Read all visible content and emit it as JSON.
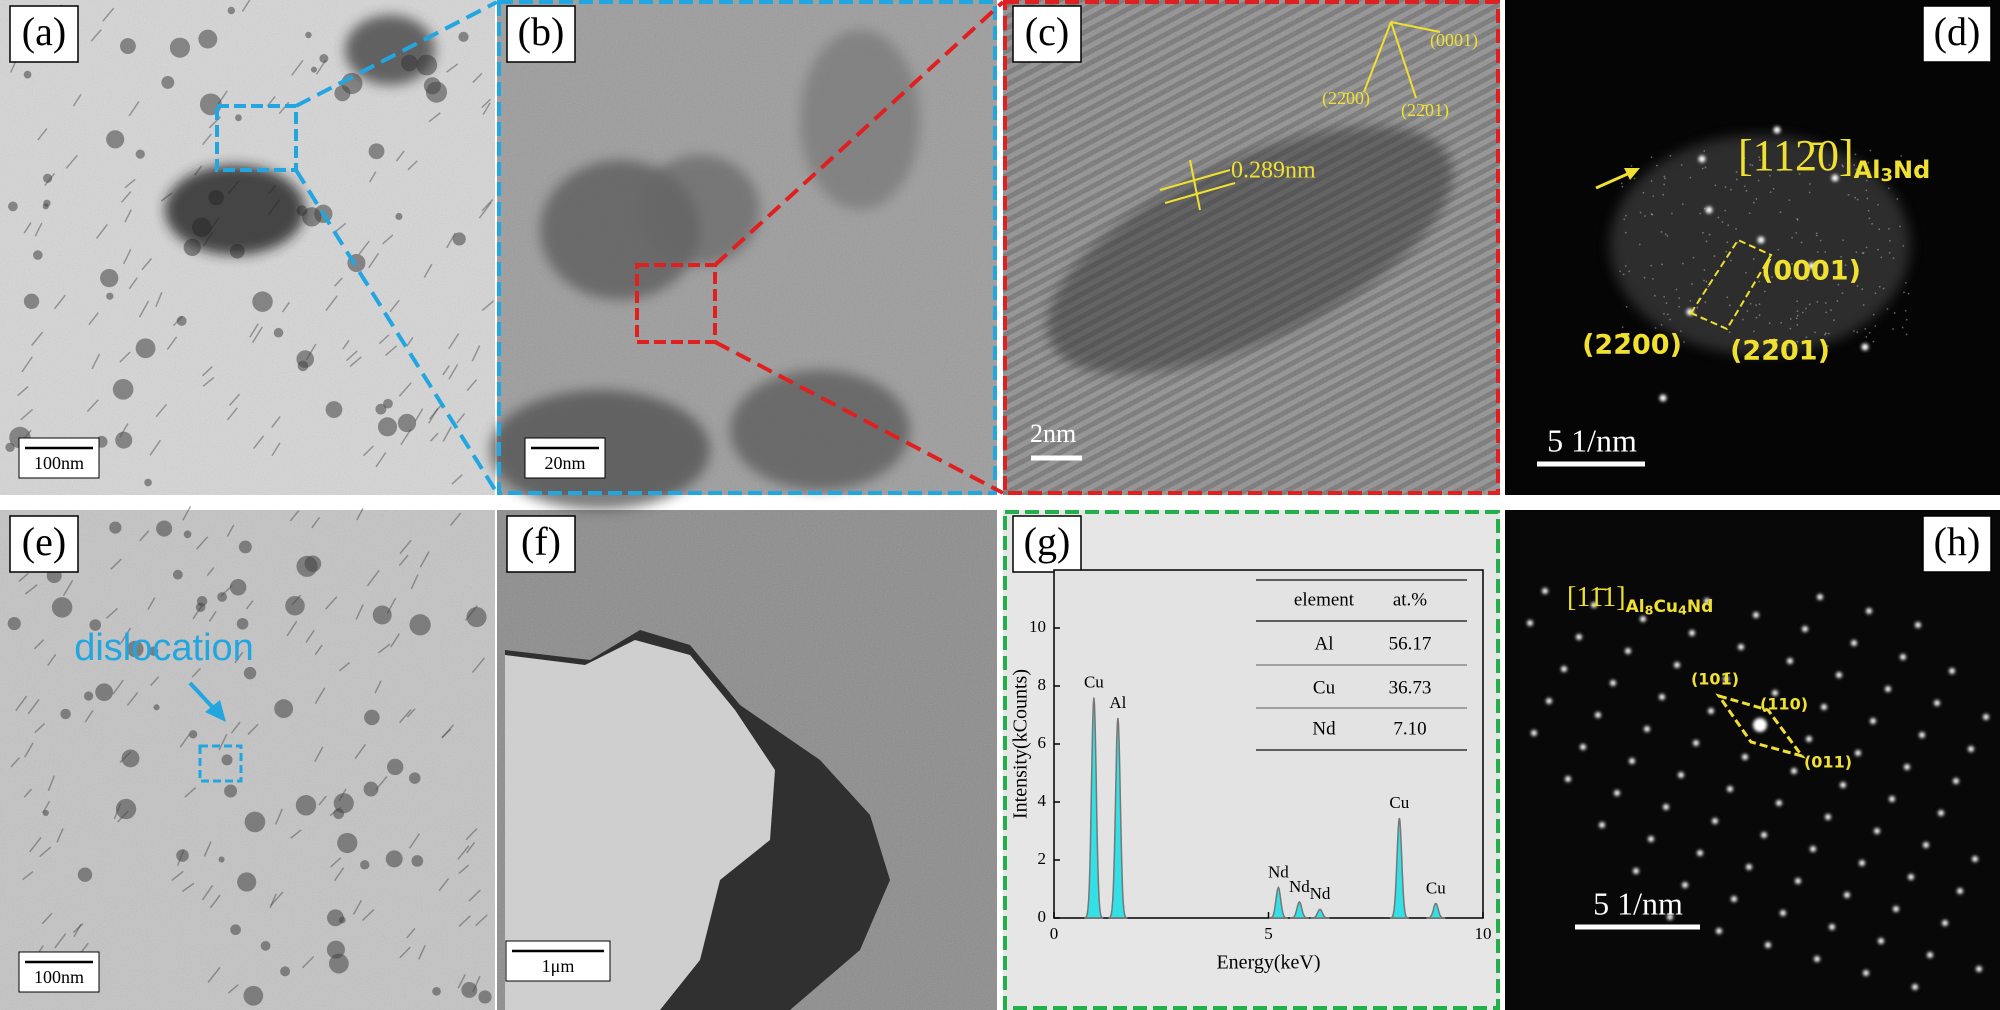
{
  "panels": [
    {
      "label": "(a)",
      "scale_bar": "100nm"
    },
    {
      "label": "(b)",
      "scale_bar": "20nm"
    },
    {
      "label": "(c)",
      "scale_bar": "2nm",
      "d_spacing": "0.289nm",
      "planes": [
        "(0001)",
        "(22̄00)",
        "(22̄01)"
      ]
    },
    {
      "label": "(d)",
      "scale_bar": "5 1/nm",
      "zone_axis": "[112̄0]",
      "phase": [
        "Al",
        "3",
        "Nd"
      ],
      "planes": [
        "(0001)",
        "(22̄00)",
        "(22̄01)"
      ]
    },
    {
      "label": "(e)",
      "scale_bar": "100nm",
      "annotation": "dislocation"
    },
    {
      "label": "(f)",
      "scale_bar": "1μm"
    },
    {
      "label": "(g)",
      "spectrum": {
        "x_label": "Energy(keV)",
        "y_label": "Intensity(kCounts)",
        "color": "#33e0e6",
        "xlim": [
          0,
          10
        ],
        "ylim": [
          0,
          12
        ],
        "xticks": [
          0,
          5,
          10
        ],
        "yticks": [
          0,
          2,
          4,
          6,
          8,
          10
        ],
        "peaks": [
          {
            "label": "Cu",
            "x": 0.93,
            "y": 7.6
          },
          {
            "label": "Al",
            "x": 1.49,
            "y": 6.9
          },
          {
            "label": "Nd",
            "x": 5.23,
            "y": 1.05
          },
          {
            "label": "Nd",
            "x": 5.72,
            "y": 0.55
          },
          {
            "label": "Nd",
            "x": 6.2,
            "y": 0.3
          },
          {
            "label": "Cu",
            "x": 8.05,
            "y": 3.45
          },
          {
            "label": "Cu",
            "x": 8.9,
            "y": 0.5
          }
        ]
      },
      "table": {
        "header": [
          "element",
          "at.%"
        ],
        "rows": [
          [
            "Al",
            "56.17"
          ],
          [
            "Cu",
            "36.73"
          ],
          [
            "Nd",
            "7.10"
          ]
        ]
      }
    },
    {
      "label": "(h)",
      "scale_bar": "5 1/nm",
      "zone_axis": "[11̄1]",
      "phase": [
        "Al",
        "8",
        "Cu",
        "4",
        "Nd"
      ],
      "planes": [
        "(101̄)",
        "(110)",
        "(011)"
      ]
    }
  ]
}
